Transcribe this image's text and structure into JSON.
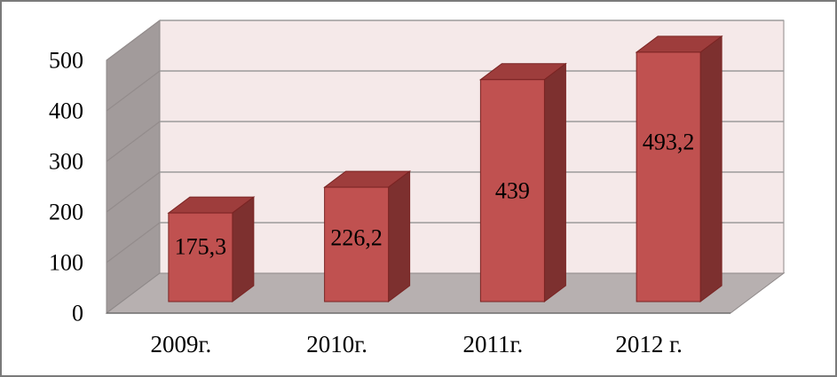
{
  "window": {
    "background": "#ffffff",
    "border_color": "#7a7a7a"
  },
  "chart_data": {
    "type": "bar",
    "projection": "3d-column",
    "title": "",
    "xlabel": "",
    "ylabel": "",
    "categories": [
      "2009г.",
      "2010г.",
      "2011г.",
      "2012 г."
    ],
    "values": [
      175.3,
      226.2,
      439,
      493.2
    ],
    "value_labels": [
      "175,3",
      "226,2",
      "439",
      "493,2"
    ],
    "ylim": [
      0,
      500
    ],
    "y_tick_values": [
      0,
      100,
      200,
      300,
      400,
      500
    ],
    "y_tick_labels": [
      "0",
      "100",
      "200",
      "300",
      "400",
      "500"
    ],
    "grid": true,
    "legend": "none",
    "colors": {
      "bar_front": "#c05150",
      "bar_top": "#9e3d3c",
      "bar_side": "#7d302f",
      "bar_outline": "#7a2423",
      "back_wall": "#f5e9e9",
      "side_wall": "#a29b9b",
      "floor": "#b7b0b0",
      "gridline": "#9b9b9b",
      "edge": "#8f8989",
      "axis_line": "#6e6e6e",
      "text": "#000000"
    }
  }
}
